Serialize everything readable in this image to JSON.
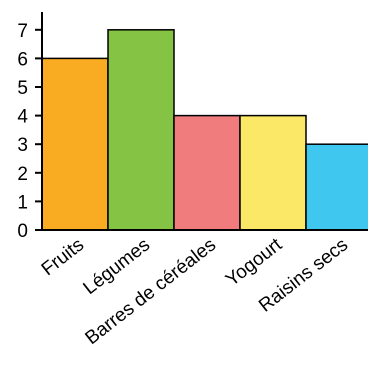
{
  "chart_data": {
    "type": "bar",
    "categories": [
      "Fruits",
      "Légumes",
      "Barres de céréales",
      "Yogourt",
      "Raisins secs"
    ],
    "values": [
      6,
      7,
      4,
      4,
      3
    ],
    "colors": [
      "#f9ab22",
      "#84c344",
      "#f17c7d",
      "#fbe867",
      "#40c7f0"
    ],
    "yticks": [
      0,
      1,
      2,
      3,
      4,
      5,
      6,
      7
    ],
    "ylim": [
      0,
      7
    ],
    "grid": false,
    "title": "",
    "xlabel": "",
    "ylabel": ""
  }
}
